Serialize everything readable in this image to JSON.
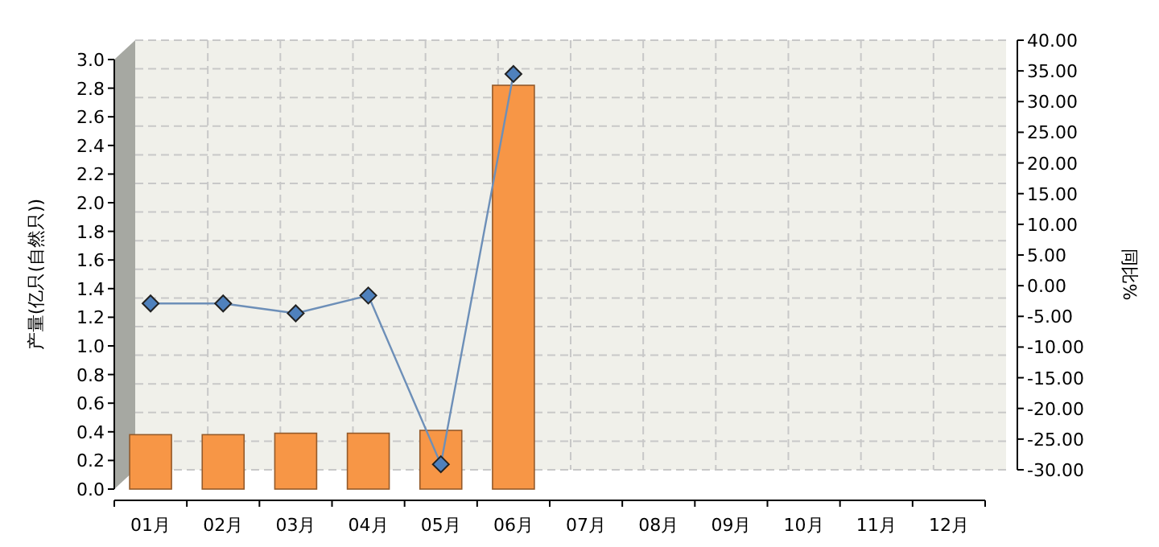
{
  "chart_data": {
    "type": "bar",
    "categories": [
      "01月",
      "02月",
      "03月",
      "04月",
      "05月",
      "06月",
      "07月",
      "08月",
      "09月",
      "10月",
      "11月",
      "12月"
    ],
    "ylabel": "产量(亿只(自然只))",
    "y2label": "同比%",
    "ylim": [
      0,
      3
    ],
    "yticks": [
      {
        "value": 0,
        "label": "0.0"
      },
      {
        "value": 0.2,
        "label": "0.2"
      },
      {
        "value": 0.4,
        "label": "0.4"
      },
      {
        "value": 0.6,
        "label": "0.6"
      },
      {
        "value": 0.8,
        "label": "0.8"
      },
      {
        "value": 1,
        "label": "1.0"
      },
      {
        "value": 1.2,
        "label": "1.2"
      },
      {
        "value": 1.4,
        "label": "1.4"
      },
      {
        "value": 1.6,
        "label": "1.6"
      },
      {
        "value": 1.8,
        "label": "1.8"
      },
      {
        "value": 2,
        "label": "2.0"
      },
      {
        "value": 2.2,
        "label": "2.2"
      },
      {
        "value": 2.4,
        "label": "2.4"
      },
      {
        "value": 2.6,
        "label": "2.6"
      },
      {
        "value": 2.8,
        "label": "2.8"
      },
      {
        "value": 3,
        "label": "3.0"
      }
    ],
    "y2lim": [
      -30,
      40
    ],
    "y2ticks": [
      {
        "value": -30,
        "label": "-30.00"
      },
      {
        "value": -25,
        "label": "-25.00"
      },
      {
        "value": -20,
        "label": "-20.00"
      },
      {
        "value": -15,
        "label": "-15.00"
      },
      {
        "value": -10,
        "label": "-10.00"
      },
      {
        "value": -5,
        "label": "-5.00"
      },
      {
        "value": 0,
        "label": "0.00"
      },
      {
        "value": 5,
        "label": "5.00"
      },
      {
        "value": 10,
        "label": "10.00"
      },
      {
        "value": 15,
        "label": "15.00"
      },
      {
        "value": 20,
        "label": "20.00"
      },
      {
        "value": 25,
        "label": "25.00"
      },
      {
        "value": 30,
        "label": "30.00"
      },
      {
        "value": 35,
        "label": "35.00"
      },
      {
        "value": 40,
        "label": "40.00"
      }
    ],
    "grid": true,
    "marker": "diamond",
    "series": [
      {
        "color": "#f79646",
        "values": [
          0.38,
          0.38,
          0.39,
          0.39,
          0.41,
          2.82,
          null,
          null,
          null,
          null,
          null,
          null
        ]
      },
      {
        "type": "line",
        "axis": "y2",
        "color": "#4f81bd",
        "values": [
          -2.9,
          -2.9,
          -4.5,
          -1.6,
          -29.1,
          34.5,
          null,
          null,
          null,
          null,
          null,
          null
        ]
      }
    ]
  }
}
